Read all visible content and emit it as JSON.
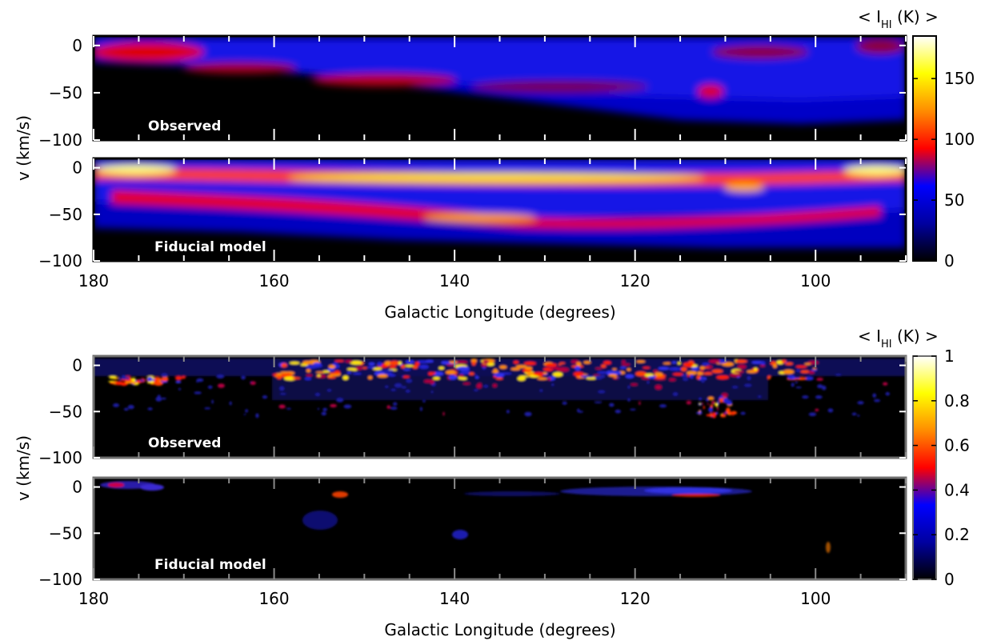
{
  "chart_data": [
    {
      "type": "heatmap",
      "group": "top",
      "panel_label": "Observed",
      "xlabel": "",
      "ylabel": "v (km/s)",
      "xlim": [
        180,
        90
      ],
      "ylim": [
        -100,
        10
      ],
      "x_ticks": [
        "180",
        "160",
        "140",
        "120",
        "100"
      ],
      "y_ticks": [
        "0",
        "-50",
        "-100"
      ],
      "intensity_range": [
        0,
        185
      ],
      "features": [
        {
          "l": [
            180,
            168
          ],
          "v": [
            5,
            -12
          ],
          "intensity": 80
        },
        {
          "l": [
            160,
            140
          ],
          "v": [
            -25,
            -40
          ],
          "intensity": 70
        },
        {
          "l": [
            115,
            110
          ],
          "v": [
            -40,
            -50
          ],
          "intensity": 75
        }
      ]
    },
    {
      "type": "heatmap",
      "group": "top",
      "panel_label": "Fiducial model",
      "xlabel": "Galactic Longitude (degrees)",
      "ylabel": "",
      "xlim": [
        180,
        90
      ],
      "ylim": [
        -100,
        10
      ],
      "x_ticks": [
        "180",
        "160",
        "140",
        "120",
        "100"
      ],
      "y_ticks": [
        "0",
        "-50",
        "-100"
      ],
      "intensity_range": [
        0,
        185
      ],
      "features": [
        {
          "l": [
            180,
            90
          ],
          "v": [
            5,
            -10
          ],
          "intensity": 150
        },
        {
          "l": [
            170,
            100
          ],
          "v": [
            -30,
            -55
          ],
          "intensity": 110
        }
      ]
    },
    {
      "type": "heatmap",
      "group": "bottom",
      "panel_label": "Observed",
      "xlabel": "",
      "ylabel": "v (km/s)",
      "xlim": [
        180,
        90
      ],
      "ylim": [
        -100,
        10
      ],
      "x_ticks": [
        "180",
        "160",
        "140",
        "120",
        "100"
      ],
      "y_ticks": [
        "0",
        "-50",
        "-100"
      ],
      "intensity_range": [
        0,
        1
      ],
      "features": [
        {
          "l": [
            160,
            100
          ],
          "v": [
            5,
            -15
          ],
          "intensity": 0.6
        },
        {
          "l": [
            178,
            170
          ],
          "v": [
            -15,
            -22
          ],
          "intensity": 0.5
        },
        {
          "l": [
            113,
            109
          ],
          "v": [
            -35,
            -55
          ],
          "intensity": 0.55
        }
      ]
    },
    {
      "type": "heatmap",
      "group": "bottom",
      "panel_label": "Fiducial model",
      "xlabel": "Galactic Longitude (degrees)",
      "ylabel": "",
      "xlim": [
        180,
        90
      ],
      "ylim": [
        -100,
        10
      ],
      "x_ticks": [
        "180",
        "160",
        "140",
        "120",
        "100"
      ],
      "y_ticks": [
        "0",
        "-50",
        "-100"
      ],
      "intensity_range": [
        0,
        1
      ],
      "features": [
        {
          "l": [
            120,
            105
          ],
          "v": [
            0,
            -12
          ],
          "intensity": 0.35
        },
        {
          "l": [
            180,
            170
          ],
          "v": [
            3,
            -8
          ],
          "intensity": 0.3
        },
        {
          "l": [
            154,
            150
          ],
          "v": [
            -5,
            -10
          ],
          "intensity": 0.45
        }
      ]
    }
  ],
  "colorbars": [
    {
      "label_prefix": "< I",
      "label_sub": "HI",
      "label_suffix": " (K) >",
      "ticks": [
        "0",
        "50",
        "100",
        "150"
      ],
      "range": [
        0,
        185
      ]
    },
    {
      "label_prefix": "< I",
      "label_sub": "HI",
      "label_suffix": " (K) >",
      "ticks": [
        "0",
        "0.2",
        "0.4",
        "0.6",
        "0.8",
        "1"
      ],
      "range": [
        0,
        1
      ]
    }
  ],
  "colors": {
    "colormap": [
      "#000000",
      "#0000a0",
      "#0000ff",
      "#ff0000",
      "#ff8c00",
      "#ffff00",
      "#ffffff"
    ],
    "frame_top": "#000000",
    "frame_bottom": "#6e6e6e",
    "panel_label": "#ffffff"
  }
}
